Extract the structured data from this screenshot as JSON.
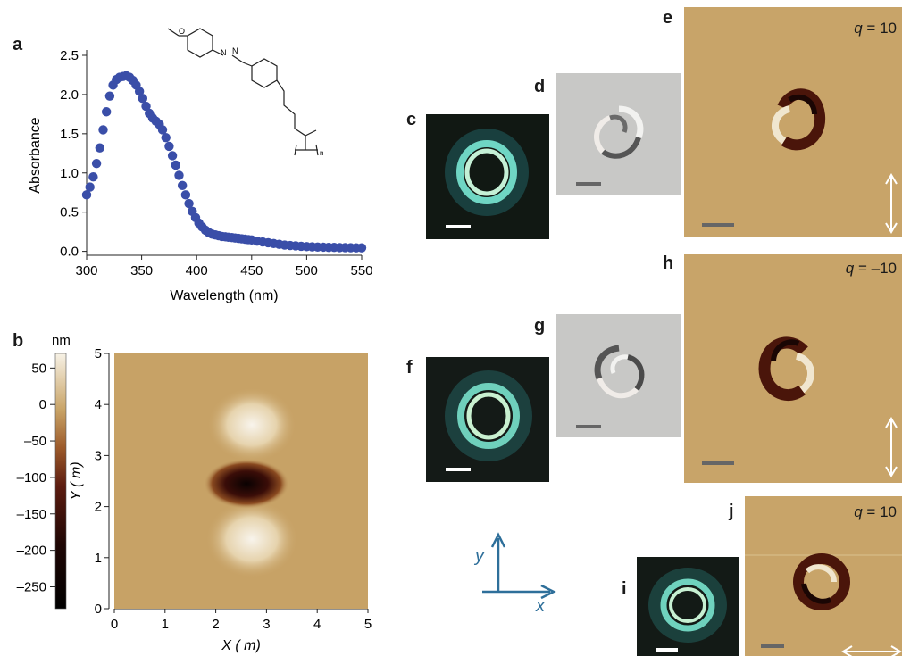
{
  "panels": {
    "a": "a",
    "b": "b",
    "c": "c",
    "d": "d",
    "e": "e",
    "f": "f",
    "g": "g",
    "h": "h",
    "i": "i",
    "j": "j"
  },
  "q_labels": {
    "e": {
      "var": "q",
      "text": " = 10"
    },
    "h": {
      "var": "q",
      "text": " = –10"
    },
    "j": {
      "var": "q",
      "text": " = 10"
    }
  },
  "axes_indicator": {
    "x": "x",
    "y": "y"
  },
  "chem_labels": {
    "o": "O",
    "n1": "N",
    "n2": "N",
    "n_sub": "n"
  },
  "colors": {
    "series": "#3a4ea8",
    "afm_base": "#c7a266",
    "arrow_blue": "#2e6f9a"
  },
  "chart_data": [
    {
      "type": "scatter",
      "title": "",
      "xlabel": "Wavelength (nm)",
      "ylabel": "Absorbance",
      "xlim": [
        300,
        550
      ],
      "ylim": [
        -0.05,
        2.5
      ],
      "xticks": [
        300,
        350,
        400,
        450,
        500,
        550
      ],
      "yticks": [
        0.0,
        0.5,
        1.0,
        1.5,
        2.0,
        2.5
      ],
      "x": [
        300,
        303,
        306,
        309,
        312,
        315,
        318,
        321,
        324,
        327,
        330,
        333,
        336,
        339,
        342,
        345,
        348,
        351,
        354,
        357,
        360,
        363,
        366,
        369,
        372,
        375,
        378,
        381,
        384,
        387,
        390,
        393,
        396,
        399,
        402,
        405,
        408,
        411,
        414,
        417,
        420,
        423,
        426,
        429,
        432,
        435,
        438,
        441,
        444,
        447,
        450,
        455,
        460,
        465,
        470,
        475,
        480,
        485,
        490,
        495,
        500,
        505,
        510,
        515,
        520,
        525,
        530,
        535,
        540,
        545,
        550
      ],
      "y": [
        0.72,
        0.82,
        0.95,
        1.12,
        1.32,
        1.55,
        1.78,
        1.98,
        2.12,
        2.19,
        2.22,
        2.23,
        2.24,
        2.22,
        2.18,
        2.12,
        2.04,
        1.95,
        1.85,
        1.76,
        1.7,
        1.66,
        1.62,
        1.55,
        1.45,
        1.34,
        1.22,
        1.1,
        0.97,
        0.84,
        0.72,
        0.61,
        0.51,
        0.43,
        0.36,
        0.31,
        0.27,
        0.24,
        0.22,
        0.21,
        0.2,
        0.19,
        0.185,
        0.18,
        0.175,
        0.17,
        0.165,
        0.16,
        0.155,
        0.15,
        0.145,
        0.13,
        0.12,
        0.11,
        0.1,
        0.09,
        0.08,
        0.075,
        0.07,
        0.065,
        0.06,
        0.058,
        0.055,
        0.053,
        0.05,
        0.05,
        0.048,
        0.047,
        0.046,
        0.045,
        0.045
      ]
    },
    {
      "type": "heatmap",
      "title": "",
      "xlabel": "X (  m)",
      "ylabel": "Y (  m)",
      "xlim": [
        0,
        5
      ],
      "ylim": [
        0,
        5
      ],
      "xticks": [
        0,
        1,
        2,
        3,
        4,
        5
      ],
      "yticks": [
        0,
        1,
        2,
        3,
        4,
        5
      ],
      "colorbar": {
        "label": "nm",
        "range": [
          -280,
          70
        ],
        "ticks": [
          50,
          0,
          -50,
          -100,
          -150,
          -200,
          -250
        ],
        "tick_labels": [
          "50",
          "0",
          "–50",
          "–100",
          "–150",
          "–200",
          "–250"
        ]
      },
      "features": [
        {
          "kind": "depression",
          "center": [
            2.7,
            2.4
          ]
        },
        {
          "kind": "peak",
          "center": [
            2.75,
            3.4
          ]
        },
        {
          "kind": "peak",
          "center": [
            2.75,
            1.4
          ]
        }
      ]
    }
  ]
}
